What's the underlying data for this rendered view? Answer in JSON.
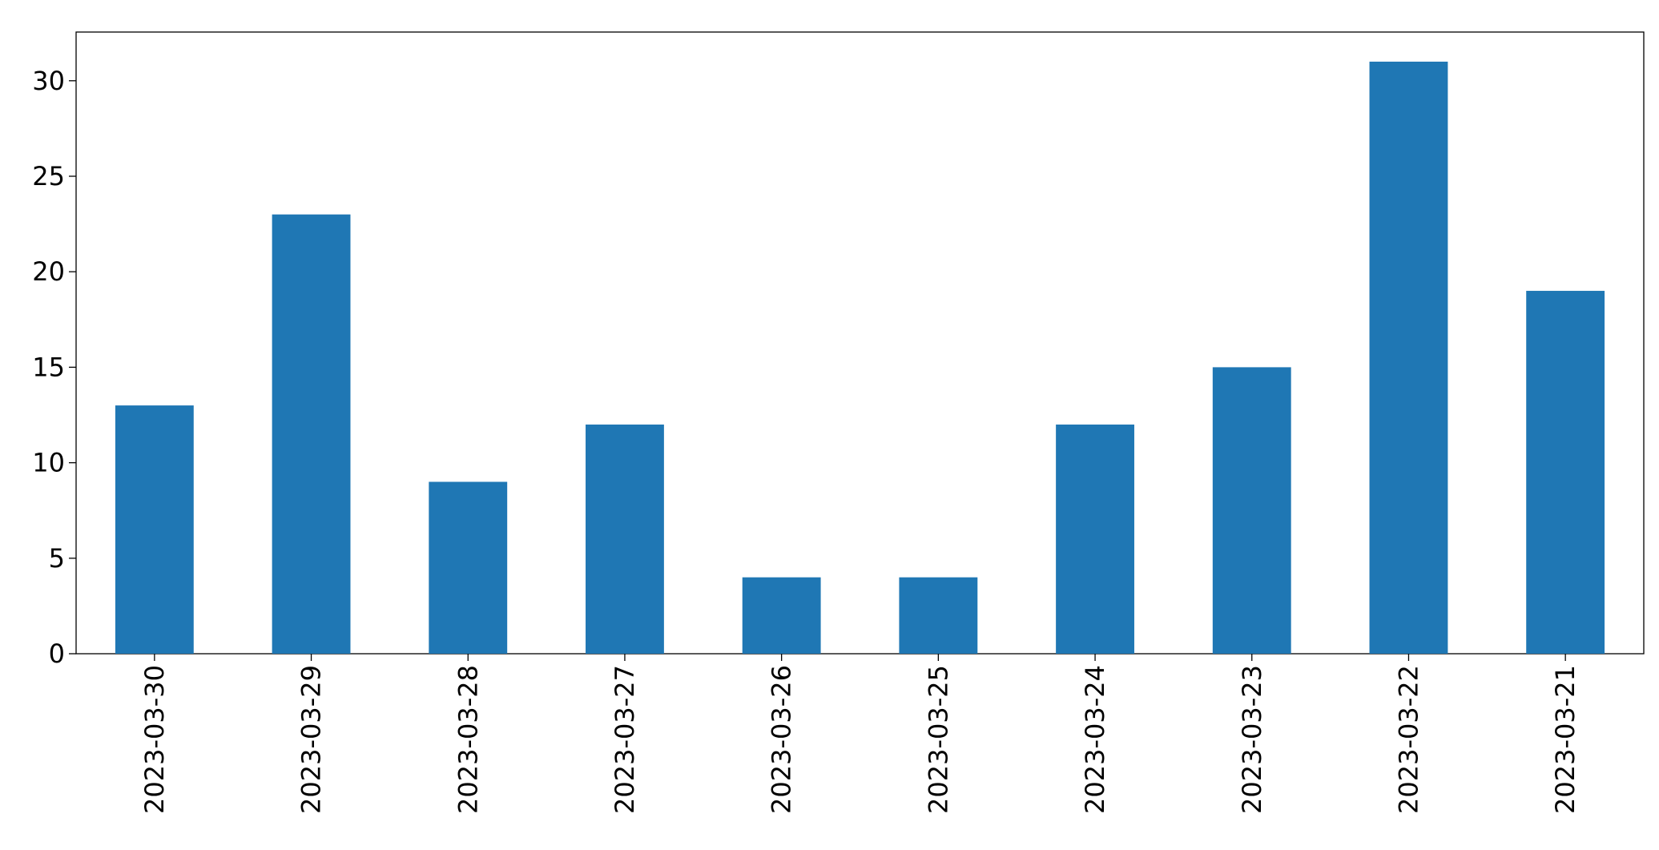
{
  "chart_data": {
    "type": "bar",
    "categories": [
      "2023-03-30",
      "2023-03-29",
      "2023-03-28",
      "2023-03-27",
      "2023-03-26",
      "2023-03-25",
      "2023-03-24",
      "2023-03-23",
      "2023-03-22",
      "2023-03-21"
    ],
    "values": [
      13,
      23,
      9,
      12,
      4,
      4,
      12,
      15,
      31,
      19
    ],
    "color": "#1f77b4",
    "ylim": [
      0,
      32.55
    ],
    "yticks": [
      0,
      5,
      10,
      15,
      20,
      25,
      30
    ],
    "grid": false
  }
}
